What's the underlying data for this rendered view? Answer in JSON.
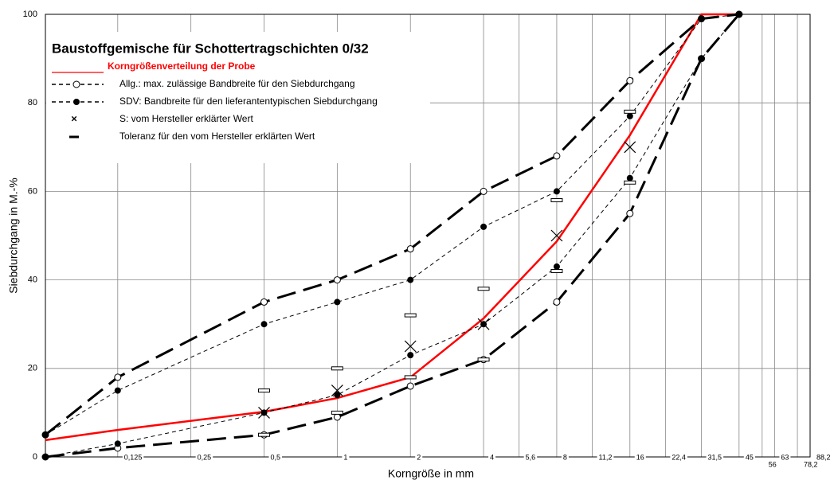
{
  "chart_data": {
    "type": "line",
    "title": "Baustoffgemische für Schottertragschichten 0/32",
    "xlabel": "Korngröße in mm",
    "ylabel": "Siebdurchgang in M.-%",
    "xscale": "log",
    "grid": true,
    "xlim": [
      0.063,
      88.2
    ],
    "ylim": [
      0,
      100
    ],
    "yticks": [
      0,
      20,
      40,
      60,
      80,
      100
    ],
    "xticks": [
      {
        "value": 0.125,
        "label": "0,125"
      },
      {
        "value": 0.25,
        "label": "0,25"
      },
      {
        "value": 0.5,
        "label": "0,5"
      },
      1,
      2,
      4,
      {
        "value": 5.6,
        "label": "5,6"
      },
      8,
      {
        "value": 11.2,
        "label": "11,2"
      },
      16,
      {
        "value": 22.4,
        "label": "22,4"
      },
      {
        "value": 31.5,
        "label": "31,5"
      },
      45,
      56,
      63,
      {
        "value": 78.2,
        "label": "78,2"
      },
      {
        "value": 88.2,
        "label": "88,2"
      }
    ],
    "series": [
      {
        "name": "Korngrößenverteilung der Probe",
        "color": "#ff0000",
        "line": "solid",
        "x": [
          0.063,
          0.125,
          0.5,
          1,
          2,
          4,
          8,
          16,
          31.5,
          45
        ],
        "values": [
          3.8,
          6.1,
          10.2,
          13.3,
          18,
          31.3,
          48.7,
          72.7,
          100,
          100
        ]
      },
      {
        "name": "Allg.: max. zulässige Bandbreite für den Siebdurchgang",
        "color": "#000000",
        "line": "long-dash",
        "marker": "open-circle",
        "x": [
          0.063,
          0.125,
          0.5,
          1,
          2,
          4,
          8,
          16,
          31.5,
          45
        ],
        "values": [
          5,
          18,
          35,
          40,
          47,
          60,
          68,
          85,
          99,
          100
        ]
      },
      {
        "color": "#000000",
        "line": "long-dash",
        "marker": "open-circle",
        "x": [
          0.063,
          0.125,
          0.5,
          1,
          2,
          4,
          8,
          16,
          31.5,
          45
        ],
        "values": [
          0,
          2,
          5,
          9,
          16,
          22,
          35,
          55,
          90,
          100
        ]
      },
      {
        "name": "SDV: Bandbreite für den lieferantentypischen Siebdurchgang",
        "color": "#000000",
        "line": "short-dash",
        "marker": "filled-circle",
        "x": [
          0.063,
          0.125,
          0.5,
          1,
          2,
          4,
          8,
          16,
          31.5,
          45
        ],
        "values": [
          5,
          15,
          30,
          35,
          40,
          52,
          60,
          77,
          99,
          100
        ]
      },
      {
        "color": "#000000",
        "line": "short-dash",
        "marker": "filled-circle",
        "x": [
          0.063,
          0.125,
          0.5,
          1,
          2,
          4,
          8,
          16,
          31.5,
          45
        ],
        "values": [
          0,
          3,
          10,
          14,
          23,
          30,
          43,
          63,
          90,
          100
        ]
      },
      {
        "name": "S: vom Hersteller erklärter Wert",
        "color": "#000000",
        "marker": "x",
        "x": [
          0.5,
          1,
          2,
          4,
          8,
          16
        ],
        "values": [
          10,
          15,
          25,
          30,
          50,
          70
        ]
      },
      {
        "name": "Toleranz für den vom Hersteller erklärten Wert",
        "color": "#000000",
        "marker": "bar",
        "x": [
          0.5,
          0.5,
          1,
          1,
          2,
          2,
          4,
          4,
          8,
          8,
          16,
          16
        ],
        "values": [
          15,
          5,
          20,
          10,
          32,
          18,
          38,
          22,
          58,
          42,
          78,
          62
        ]
      }
    ]
  }
}
